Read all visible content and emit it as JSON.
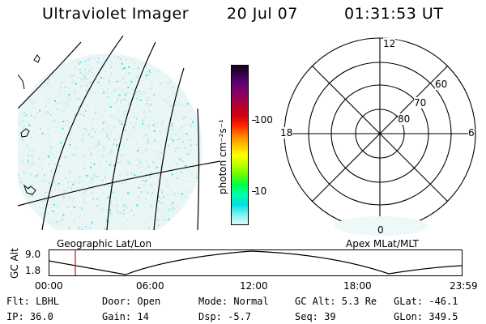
{
  "header": {
    "instrument": "Ultraviolet Imager",
    "date": "20 Jul 07",
    "time": "01:31:53 UT"
  },
  "colorbar": {
    "unit_label": "photon cm⁻²s⁻¹",
    "ticks": [
      "100",
      "10"
    ],
    "colors": [
      "#1a0020",
      "#3b0050",
      "#6a0070",
      "#900060",
      "#b00030",
      "#d00010",
      "#ff2000",
      "#ff7a00",
      "#ffc000",
      "#ffff00",
      "#c0ff00",
      "#60ff00",
      "#00ff40",
      "#00ffb0",
      "#00e0e0",
      "#80f0f0",
      "#e0f8f8"
    ]
  },
  "geo_map": {
    "label": "Geographic Lat/Lon"
  },
  "polar_plot": {
    "label": "Apex MLat/MLT",
    "mlt_labels": {
      "top": "12",
      "left": "18",
      "right": "6",
      "bottom": "0"
    },
    "lat_labels": [
      "60",
      "70",
      "80"
    ]
  },
  "altitude_plot": {
    "ylabel": "GC Alt",
    "ytick_high": "9.0",
    "ytick_low": "1.8",
    "xticks": [
      "00:00",
      "06:00",
      "12:00",
      "18:00",
      "23:59"
    ]
  },
  "status": {
    "filter": "Flt: LBHL",
    "ip": "IP: 36.0",
    "door": "Door: Open",
    "gain": "Gain: 14",
    "mode": "Mode: Normal",
    "dsp": "Dsp:   -5.7",
    "gc_alt": "GC Alt: 5.3 Re",
    "seq": "Seq: 39",
    "glat": "GLat: -46.1",
    "glon": "GLon: 349.5"
  }
}
